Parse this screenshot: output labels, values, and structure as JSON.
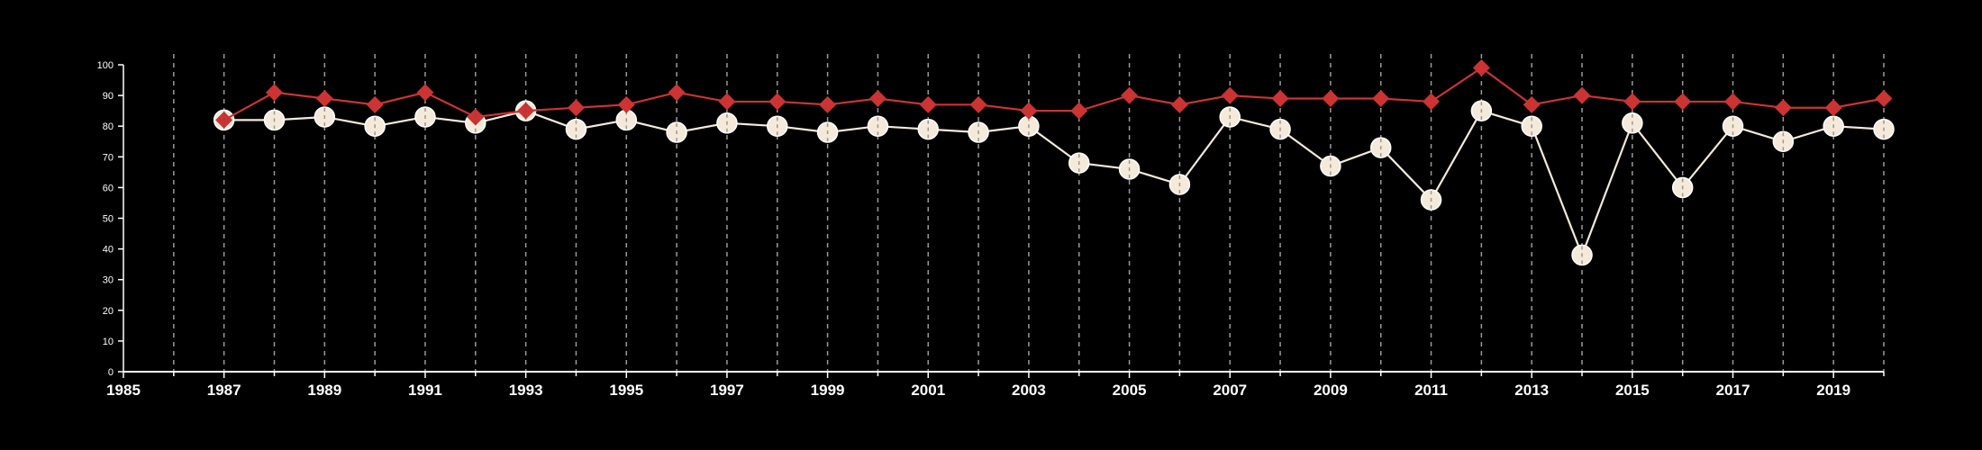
{
  "chart_data": {
    "type": "line",
    "x": [
      1987,
      1988,
      1989,
      1990,
      1991,
      1992,
      1993,
      1994,
      1995,
      1996,
      1997,
      1998,
      1999,
      2000,
      2001,
      2002,
      2003,
      2004,
      2005,
      2006,
      2007,
      2008,
      2009,
      2010,
      2011,
      2012,
      2013,
      2014,
      2015,
      2016,
      2017,
      2018,
      2019,
      2020
    ],
    "xlim": [
      1985,
      2020
    ],
    "ylim": [
      0,
      100
    ],
    "yticks": [
      0,
      10,
      20,
      30,
      40,
      50,
      60,
      70,
      80,
      90,
      100
    ],
    "xticks": [
      1985,
      1987,
      1989,
      1991,
      1993,
      1995,
      1997,
      1999,
      2001,
      2003,
      2005,
      2007,
      2009,
      2011,
      2013,
      2015,
      2017,
      2019
    ],
    "vertical_gridlines": "dashed, one per year",
    "series": [
      {
        "color": "#cc3333",
        "marker": "diamond",
        "values": [
          82,
          91,
          89,
          87,
          91,
          83,
          85,
          86,
          87,
          91,
          88,
          88,
          87,
          89,
          87,
          87,
          85,
          85,
          90,
          87,
          90,
          89,
          89,
          89,
          88,
          99,
          87,
          90,
          88,
          88,
          88,
          86,
          86,
          89
        ]
      },
      {
        "color": "#f5ead9",
        "marker": "circle",
        "values": [
          82,
          82,
          83,
          80,
          83,
          81,
          85,
          79,
          82,
          78,
          81,
          80,
          78,
          80,
          79,
          78,
          80,
          68,
          66,
          61,
          83,
          79,
          67,
          73,
          56,
          85,
          80,
          38,
          81,
          60,
          80,
          75,
          80,
          79
        ]
      }
    ]
  }
}
